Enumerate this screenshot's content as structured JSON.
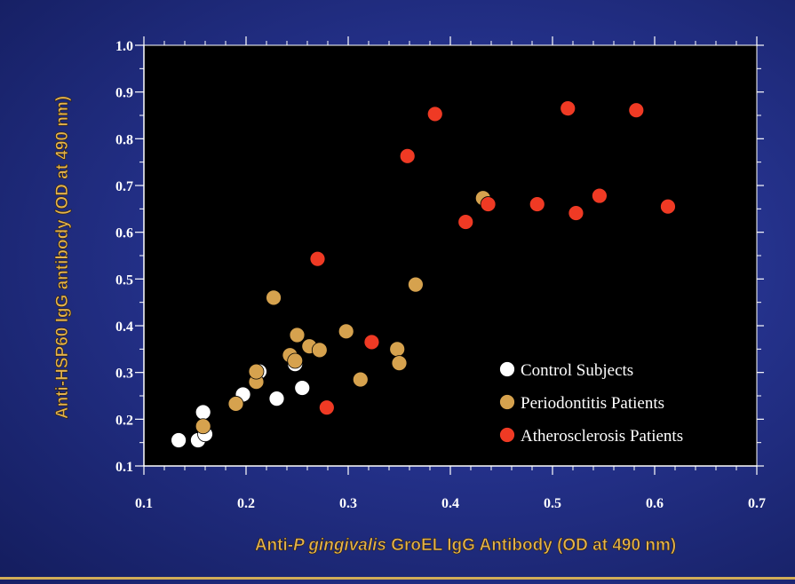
{
  "chart_data": {
    "type": "scatter",
    "xlabel_prefix": "Anti-",
    "xlabel_italic": "P gingivalis",
    "xlabel_suffix": " GroEL IgG Antibody (OD at 490 nm)",
    "ylabel": "Anti-HSP60 IgG antibody (OD at 490 nm)",
    "xlim": [
      0.1,
      0.7
    ],
    "ylim": [
      0.1,
      1.0
    ],
    "xticks": [
      "0.1",
      "0.2",
      "0.3",
      "0.4",
      "0.5",
      "0.6",
      "0.7"
    ],
    "yticks": [
      "0.1",
      "0.2",
      "0.3",
      "0.4",
      "0.5",
      "0.6",
      "0.7",
      "0.8",
      "0.9",
      "1.0"
    ],
    "legend_position": "bottom-right",
    "series": [
      {
        "name": "Control Subjects",
        "color": "#ffffff",
        "points": [
          [
            0.134,
            0.155
          ],
          [
            0.153,
            0.155
          ],
          [
            0.16,
            0.168
          ],
          [
            0.158,
            0.215
          ],
          [
            0.197,
            0.253
          ],
          [
            0.213,
            0.302
          ],
          [
            0.23,
            0.244
          ],
          [
            0.248,
            0.318
          ],
          [
            0.255,
            0.267
          ]
        ]
      },
      {
        "name": "Periodontitis Patients",
        "color": "#d6a24e",
        "points": [
          [
            0.158,
            0.185
          ],
          [
            0.19,
            0.233
          ],
          [
            0.21,
            0.28
          ],
          [
            0.21,
            0.302
          ],
          [
            0.227,
            0.46
          ],
          [
            0.243,
            0.337
          ],
          [
            0.25,
            0.38
          ],
          [
            0.248,
            0.325
          ],
          [
            0.262,
            0.356
          ],
          [
            0.272,
            0.348
          ],
          [
            0.298,
            0.388
          ],
          [
            0.312,
            0.285
          ],
          [
            0.348,
            0.35
          ],
          [
            0.35,
            0.32
          ],
          [
            0.366,
            0.488
          ],
          [
            0.432,
            0.673
          ]
        ]
      },
      {
        "name": "Atherosclerosis Patients",
        "color": "#ef3a24",
        "points": [
          [
            0.27,
            0.543
          ],
          [
            0.279,
            0.225
          ],
          [
            0.323,
            0.365
          ],
          [
            0.358,
            0.763
          ],
          [
            0.385,
            0.853
          ],
          [
            0.415,
            0.622
          ],
          [
            0.437,
            0.66
          ],
          [
            0.485,
            0.66
          ],
          [
            0.515,
            0.865
          ],
          [
            0.523,
            0.641
          ],
          [
            0.546,
            0.678
          ],
          [
            0.582,
            0.861
          ],
          [
            0.613,
            0.655
          ]
        ]
      }
    ]
  }
}
